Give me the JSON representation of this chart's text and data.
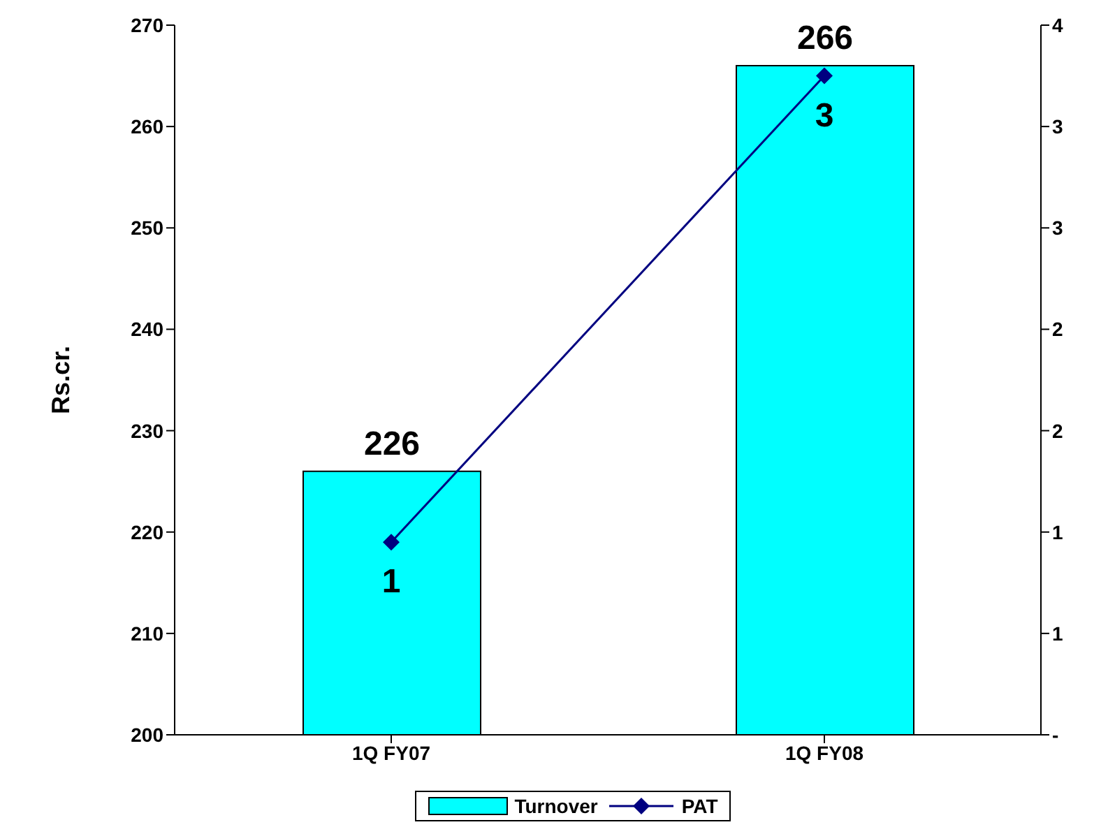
{
  "chart_data": {
    "type": "bar",
    "categories": [
      "1Q FY07",
      "1Q FY08"
    ],
    "ylabel": "Rs.cr.",
    "series": [
      {
        "name": "Turnover",
        "color": "#00ffff",
        "values": [
          226,
          266
        ],
        "value_labels": [
          "226",
          "266"
        ]
      },
      {
        "name": "PAT",
        "type": "line",
        "axis": "y2",
        "color": "#000080",
        "values": [
          0.95,
          3.25
        ],
        "value_labels": [
          "1",
          "3"
        ],
        "marker": "diamond"
      }
    ],
    "ylim": [
      200,
      270
    ],
    "yticks": [
      200,
      210,
      220,
      230,
      240,
      250,
      260,
      270
    ],
    "y2lim": [
      0,
      3.5
    ],
    "y2ticks": [
      {
        "value": 0,
        "label": "-"
      },
      {
        "value": 0.5,
        "label": "1"
      },
      {
        "value": 1,
        "label": "1"
      },
      {
        "value": 1.5,
        "label": "2"
      },
      {
        "value": 2,
        "label": "2"
      },
      {
        "value": 2.5,
        "label": "3"
      },
      {
        "value": 3,
        "label": "3"
      },
      {
        "value": 3.5,
        "label": "4"
      }
    ],
    "grid": false,
    "legend": "bottom"
  }
}
